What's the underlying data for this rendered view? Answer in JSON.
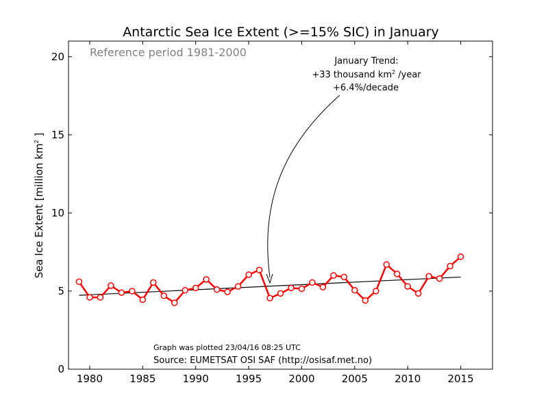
{
  "chart_data": {
    "type": "line",
    "title": "Antarctic Sea Ice Extent (>=15% SIC) in January",
    "ylabel_main": "Sea Ice Extent [million km",
    "ylabel_sup": "2",
    "ylabel_end": " ]",
    "reference_text": "Reference period 1981-2000",
    "annotation": {
      "line1": "January Trend:",
      "line2_main": "+33 thousand km",
      "line2_sup": "2",
      "line2_end": " /year",
      "line3": "+6.4%/decade",
      "arrow_target": {
        "x": 1997,
        "y": 5.3
      }
    },
    "footer_plotted": "Graph was plotted 23/04/16 08:25 UTC",
    "footer_source": "Source: EUMETSAT OSI SAF (http://osisaf.met.no)",
    "xlim": [
      1978,
      2018
    ],
    "ylim": [
      0,
      21
    ],
    "xticks": [
      1980,
      1985,
      1990,
      1995,
      2000,
      2005,
      2010,
      2015
    ],
    "yticks": [
      0,
      5,
      10,
      15,
      20
    ],
    "grid": false,
    "series": [
      {
        "color": "#ff0000",
        "x": [
          1979,
          1980,
          1981,
          1982,
          1983,
          1984,
          1985,
          1986,
          1987,
          1988,
          1989,
          1990,
          1991,
          1992,
          1993,
          1994,
          1995,
          1996,
          1997,
          1998,
          1999,
          2000,
          2001,
          2002,
          2003,
          2004,
          2005,
          2006,
          2007,
          2008,
          2009,
          2010,
          2011,
          2012,
          2013,
          2014,
          2015
        ],
        "values": [
          5.6,
          4.6,
          4.6,
          5.35,
          4.9,
          5.0,
          4.45,
          5.55,
          4.7,
          4.25,
          5.05,
          5.2,
          5.75,
          5.1,
          4.95,
          5.3,
          6.05,
          6.35,
          4.55,
          4.85,
          5.2,
          5.15,
          5.55,
          5.25,
          6.0,
          5.9,
          5.05,
          4.4,
          5.0,
          6.7,
          6.1,
          5.3,
          4.85,
          5.95,
          5.8,
          6.6,
          7.2
        ]
      }
    ],
    "trend_line": {
      "color": "#000000",
      "x": [
        1979,
        2015
      ],
      "y": [
        4.73,
        5.9
      ]
    }
  }
}
